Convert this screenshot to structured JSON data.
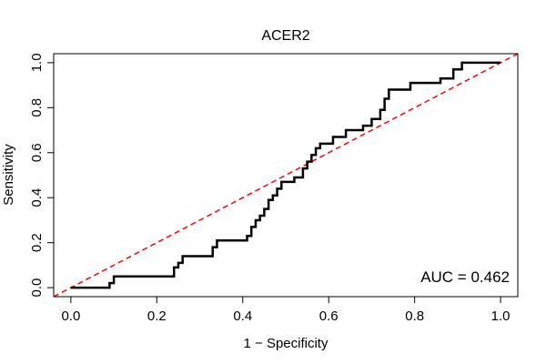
{
  "chart_data": {
    "type": "line",
    "title": "ACER2",
    "xlabel": "1 − Specificity",
    "ylabel": "Sensitivity",
    "xlim": [
      -0.04,
      1.04
    ],
    "ylim": [
      -0.04,
      1.04
    ],
    "x_ticks": [
      0.0,
      0.2,
      0.4,
      0.6,
      0.8,
      1.0
    ],
    "y_ticks": [
      0.0,
      0.2,
      0.4,
      0.6,
      0.8,
      1.0
    ],
    "x_tick_labels": [
      "0.0",
      "0.2",
      "0.4",
      "0.6",
      "0.8",
      "1.0"
    ],
    "y_tick_labels": [
      "0.0",
      "0.2",
      "0.4",
      "0.6",
      "0.8",
      "1.0"
    ],
    "grid": false,
    "annotation": "AUC = 0.462",
    "series": [
      {
        "color": "#000000",
        "style": "solid",
        "x": [
          0.0,
          0.09,
          0.09,
          0.1,
          0.1,
          0.24,
          0.24,
          0.25,
          0.25,
          0.26,
          0.26,
          0.33,
          0.33,
          0.34,
          0.34,
          0.41,
          0.41,
          0.42,
          0.42,
          0.43,
          0.43,
          0.44,
          0.44,
          0.45,
          0.45,
          0.46,
          0.46,
          0.47,
          0.47,
          0.48,
          0.48,
          0.49,
          0.49,
          0.52,
          0.52,
          0.54,
          0.54,
          0.55,
          0.55,
          0.56,
          0.56,
          0.57,
          0.57,
          0.58,
          0.58,
          0.61,
          0.61,
          0.64,
          0.64,
          0.68,
          0.68,
          0.7,
          0.7,
          0.72,
          0.72,
          0.73,
          0.73,
          0.74,
          0.74,
          0.79,
          0.79,
          0.86,
          0.86,
          0.89,
          0.89,
          0.91,
          0.91,
          0.94,
          0.94,
          1.0
        ],
        "y": [
          0.0,
          0.0,
          0.02,
          0.02,
          0.05,
          0.05,
          0.09,
          0.09,
          0.11,
          0.11,
          0.14,
          0.14,
          0.18,
          0.18,
          0.21,
          0.21,
          0.23,
          0.23,
          0.27,
          0.27,
          0.3,
          0.3,
          0.32,
          0.32,
          0.35,
          0.35,
          0.39,
          0.39,
          0.41,
          0.41,
          0.44,
          0.44,
          0.47,
          0.47,
          0.49,
          0.49,
          0.53,
          0.53,
          0.56,
          0.56,
          0.59,
          0.59,
          0.62,
          0.62,
          0.64,
          0.64,
          0.67,
          0.67,
          0.7,
          0.7,
          0.72,
          0.72,
          0.75,
          0.75,
          0.79,
          0.79,
          0.84,
          0.84,
          0.88,
          0.88,
          0.91,
          0.91,
          0.93,
          0.93,
          0.97,
          0.97,
          1.0,
          1.0,
          1.0,
          1.0
        ]
      },
      {
        "color": "#ff0000",
        "style": "dashed",
        "x": [
          -0.04,
          1.04
        ],
        "y": [
          -0.04,
          1.04
        ]
      }
    ]
  }
}
